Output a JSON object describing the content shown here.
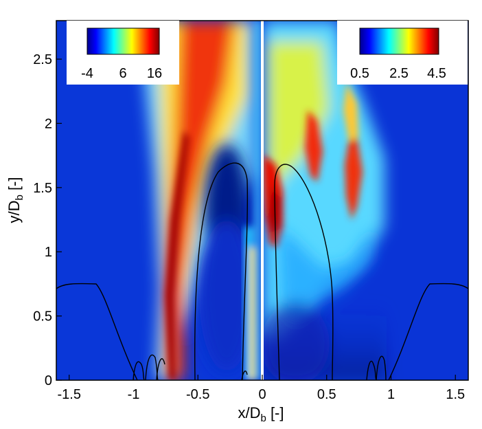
{
  "chart_data": {
    "type": "heatmap",
    "xlim": [
      -1.6,
      1.6
    ],
    "ylim": [
      0,
      2.8
    ],
    "x_ticks": [
      "-1.5",
      "-1",
      "-0.5",
      "0",
      "0.5",
      "1",
      "1.5"
    ],
    "x_tick_values": [
      -1.5,
      -1,
      -0.5,
      0,
      0.5,
      1,
      1.5
    ],
    "y_ticks": [
      "0",
      "0.5",
      "1",
      "1.5",
      "2",
      "2.5"
    ],
    "y_tick_values": [
      0,
      0.5,
      1,
      1.5,
      2,
      2.5
    ],
    "xlabel": {
      "base": "x/D",
      "sub": "b",
      "unit": " [-]"
    },
    "ylabel": {
      "base": "y/D",
      "sub": "b",
      "unit": " [-]"
    },
    "grid": false,
    "colormap": "jet",
    "left_panel": {
      "colorbar_ticks": [
        "-4",
        "6",
        "16"
      ],
      "colorbar_range": [
        -4,
        16
      ],
      "colorbar_location": "top-left"
    },
    "right_panel": {
      "colorbar_ticks": [
        "0.5",
        "2.5",
        "4.5"
      ],
      "colorbar_range": [
        0.5,
        4.5
      ],
      "colorbar_location": "top-right"
    },
    "divider_at_x": 0,
    "contour_color": "#000000"
  },
  "colors": {
    "background": "#0a2fd6",
    "jet": [
      "#00008f",
      "#0000ff",
      "#00ffff",
      "#ffff00",
      "#ff0000",
      "#800000"
    ]
  }
}
